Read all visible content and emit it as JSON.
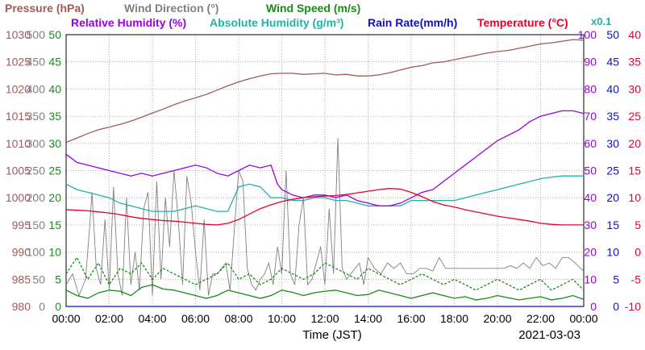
{
  "chart_data": {
    "type": "line",
    "date": "2021-03-03",
    "xlabel": "Time (JST)",
    "x_ticks": [
      "00:00",
      "02:00",
      "04:00",
      "06:00",
      "08:00",
      "10:00",
      "12:00",
      "14:00",
      "16:00",
      "18:00",
      "20:00",
      "22:00",
      "00:00"
    ],
    "x_range_hours": [
      0,
      24
    ],
    "grid": true,
    "scale_note": "x0.1",
    "legend": [
      {
        "key": "pressure",
        "label": "Pressure (hPa)",
        "color": "#a05a5a"
      },
      {
        "key": "wind_dir",
        "label": "Wind Direction (°)",
        "color": "#808080"
      },
      {
        "key": "wind_speed",
        "label": "Wind Speed (m/s)",
        "color": "#1a8a1a"
      },
      {
        "key": "rel_hum",
        "label": "Relative Humidity (%)",
        "color": "#9b00e6"
      },
      {
        "key": "abs_hum",
        "label": "Absolute Humidity (g/m³)",
        "color": "#20b2aa"
      },
      {
        "key": "rain",
        "label": "Rain Rate(mm/h)",
        "color": "#1010c8"
      },
      {
        "key": "temp",
        "label": "Temperature (°C)",
        "color": "#e8002a"
      }
    ],
    "axes": {
      "pressure": {
        "range": [
          980,
          1030
        ],
        "ticks": [
          "980",
          "985",
          "990",
          "995",
          "1000",
          "1005",
          "1010",
          "1015",
          "1020",
          "1025",
          "1030"
        ],
        "color": "#a05a5a"
      },
      "wind_dir": {
        "range": [
          0,
          500
        ],
        "ticks": [
          "0",
          "50",
          "100",
          "150",
          "200",
          "250",
          "300",
          "350",
          "400",
          "450",
          "500"
        ],
        "color": "#808080"
      },
      "wind_speed": {
        "range": [
          0,
          50
        ],
        "ticks": [
          "0",
          "5",
          "10",
          "15",
          "20",
          "25",
          "30",
          "35",
          "40",
          "45",
          "50"
        ],
        "color": "#1a8a1a"
      },
      "rel_hum": {
        "range": [
          0,
          100
        ],
        "ticks": [
          "0",
          "10",
          "20",
          "30",
          "40",
          "50",
          "60",
          "70",
          "80",
          "90",
          "100"
        ],
        "color": "#9b00e6"
      },
      "abs_hum_rain": {
        "range": [
          0,
          50
        ],
        "ticks": [
          "0",
          "5",
          "10",
          "15",
          "20",
          "25",
          "30",
          "35",
          "40",
          "45",
          "50"
        ],
        "color": "#1010c8"
      },
      "temp": {
        "range": [
          -10,
          40
        ],
        "ticks": [
          "-10",
          "-5",
          "0",
          "5",
          "10",
          "15",
          "20",
          "25",
          "30",
          "35",
          "40"
        ],
        "color": "#e8002a"
      }
    },
    "series": [
      {
        "key": "pressure",
        "axis": "pressure",
        "x": [
          0,
          0.5,
          1,
          1.5,
          2,
          2.5,
          3,
          3.5,
          4,
          4.5,
          5,
          5.5,
          6,
          6.5,
          7,
          7.5,
          8,
          8.5,
          9,
          9.5,
          10,
          10.5,
          11,
          11.5,
          12,
          12.5,
          13,
          13.5,
          14,
          14.5,
          15,
          15.5,
          16,
          16.5,
          17,
          17.5,
          18,
          18.5,
          19,
          19.5,
          20,
          20.5,
          21,
          21.5,
          22,
          22.5,
          23,
          23.5,
          24
        ],
        "y": [
          1010.2,
          1011,
          1011.8,
          1012.5,
          1013,
          1013.5,
          1014.1,
          1014.8,
          1015.6,
          1016.3,
          1017.1,
          1017.8,
          1018.4,
          1019,
          1019.8,
          1020.6,
          1021.3,
          1021.9,
          1022.4,
          1022.8,
          1022.9,
          1022.9,
          1022.7,
          1022.8,
          1022.9,
          1022.6,
          1022.7,
          1022.4,
          1022.4,
          1022.6,
          1023,
          1023.5,
          1024,
          1024.3,
          1024.8,
          1025,
          1025.4,
          1025.8,
          1026.2,
          1026.6,
          1026.9,
          1027.1,
          1027.5,
          1027.9,
          1028.3,
          1028.5,
          1028.8,
          1029.1,
          1029
        ]
      },
      {
        "key": "wind_dir",
        "axis": "wind_dir",
        "x": [
          0,
          0.3,
          0.6,
          0.9,
          1.1,
          1.2,
          1.4,
          1.6,
          1.8,
          2,
          2.2,
          2.4,
          2.6,
          2.8,
          3,
          3.2,
          3.4,
          3.6,
          3.8,
          4,
          4.2,
          4.4,
          4.6,
          4.8,
          5,
          5.2,
          5.4,
          5.6,
          5.8,
          6,
          6.2,
          6.4,
          6.6,
          6.8,
          7,
          7.2,
          7.4,
          7.6,
          7.8,
          8,
          8.2,
          8.4,
          8.6,
          8.8,
          9,
          9.2,
          9.4,
          9.6,
          9.8,
          10,
          10.2,
          10.4,
          10.6,
          10.8,
          11,
          11.2,
          11.4,
          11.6,
          11.8,
          12,
          12.2,
          12.4,
          12.6,
          12.8,
          13,
          13.2,
          13.4,
          13.6,
          13.8,
          14,
          14.3,
          14.6,
          14.9,
          15.2,
          15.5,
          15.8,
          16.1,
          16.4,
          16.7,
          17,
          17.3,
          17.6,
          17.9,
          18.2,
          18.5,
          18.8,
          19.1,
          19.4,
          19.7,
          20,
          20.3,
          20.6,
          20.9,
          21.2,
          21.5,
          21.8,
          22.1,
          22.4,
          22.7,
          23,
          23.3,
          23.6,
          24
        ],
        "y": [
          40,
          60,
          20,
          50,
          150,
          210,
          70,
          40,
          160,
          30,
          220,
          60,
          20,
          200,
          40,
          100,
          30,
          180,
          210,
          20,
          230,
          50,
          200,
          110,
          250,
          160,
          40,
          240,
          190,
          100,
          30,
          160,
          20,
          60,
          60,
          70,
          80,
          30,
          140,
          250,
          230,
          70,
          40,
          30,
          50,
          60,
          80,
          40,
          110,
          60,
          250,
          60,
          40,
          150,
          200,
          40,
          50,
          80,
          110,
          40,
          180,
          60,
          310,
          70,
          50,
          60,
          70,
          80,
          40,
          90,
          70,
          60,
          80,
          70,
          80,
          60,
          60,
          70,
          70,
          65,
          90,
          70,
          70,
          70,
          70,
          70,
          70,
          70,
          70,
          70,
          70,
          75,
          70,
          80,
          70,
          90,
          75,
          80,
          70,
          90,
          90,
          80,
          65
        ]
      },
      {
        "key": "wind_speed",
        "axis": "wind_speed",
        "x": [
          0,
          0.5,
          1,
          1.5,
          2,
          2.5,
          3,
          3.5,
          4,
          4.5,
          5,
          5.5,
          6,
          6.5,
          7,
          7.5,
          8,
          8.5,
          9,
          9.5,
          10,
          10.5,
          11,
          11.5,
          12,
          12.5,
          13,
          13.5,
          14,
          14.5,
          15,
          15.5,
          16,
          16.5,
          17,
          17.5,
          18,
          18.5,
          19,
          19.5,
          20,
          20.5,
          21,
          21.5,
          22,
          22.5,
          23,
          23.5,
          24
        ],
        "y": [
          3,
          2,
          1.5,
          2.5,
          3,
          2.8,
          2,
          3.5,
          4,
          3.2,
          3,
          2.5,
          2,
          1.5,
          2,
          3,
          2.5,
          2,
          1.5,
          2,
          3,
          2.6,
          2,
          2.5,
          2.8,
          3,
          2.5,
          2,
          2.2,
          3,
          2.5,
          2,
          1.5,
          2,
          2.5,
          2,
          1.5,
          1.8,
          1.2,
          1.5,
          2,
          1.6,
          1.2,
          1.5,
          1.8,
          1.2,
          1.5,
          2,
          1.3
        ]
      },
      {
        "key": "wind_gust",
        "axis": "wind_speed",
        "dashed": true,
        "x": [
          0,
          0.5,
          1,
          1.5,
          2,
          2.5,
          3,
          3.5,
          4,
          4.5,
          5,
          5.5,
          6,
          6.5,
          7,
          7.5,
          8,
          8.5,
          9,
          9.5,
          10,
          10.5,
          11,
          11.5,
          12,
          12.5,
          13,
          13.5,
          14,
          14.5,
          15,
          15.5,
          16,
          16.5,
          17,
          17.5,
          18,
          18.5,
          19,
          19.5,
          20,
          20.5,
          21,
          21.5,
          22,
          22.5,
          23,
          23.5,
          24
        ],
        "y": [
          6,
          9,
          5,
          8,
          4,
          7,
          6,
          8,
          5,
          7,
          6,
          5,
          4,
          5,
          6,
          8,
          5,
          6,
          4,
          5,
          7,
          6,
          5,
          6,
          8,
          7,
          6,
          5,
          7,
          6,
          5,
          4,
          5,
          6,
          5,
          4,
          5,
          4,
          3,
          4,
          5,
          4,
          3,
          4,
          5,
          3,
          4,
          5,
          3
        ]
      },
      {
        "key": "rel_hum",
        "axis": "rel_hum",
        "x": [
          0,
          0.5,
          1,
          1.5,
          2,
          2.5,
          3,
          3.5,
          4,
          4.5,
          5,
          5.5,
          6,
          6.5,
          7,
          7.5,
          8,
          8.5,
          9,
          9.5,
          9.8,
          10,
          10.5,
          11,
          11.5,
          12,
          12.5,
          13,
          13.5,
          14,
          14.5,
          15,
          15.5,
          16,
          16.5,
          17,
          17.5,
          18,
          18.5,
          19,
          19.5,
          20,
          20.5,
          21,
          21.5,
          22,
          22.5,
          23,
          23.5,
          24
        ],
        "y": [
          56,
          53,
          52,
          51,
          50,
          49,
          48,
          49,
          48,
          49,
          50,
          51,
          52,
          51,
          49,
          48,
          50,
          52,
          51,
          52,
          45,
          43,
          41,
          40,
          41,
          41,
          40,
          41,
          39,
          38,
          37,
          37,
          38,
          40,
          42,
          43,
          46,
          49,
          52,
          55,
          58,
          61,
          63,
          65,
          68,
          70,
          71,
          72,
          72,
          71
        ]
      },
      {
        "key": "abs_hum",
        "axis": "abs_hum_rain",
        "x": [
          0,
          0.5,
          1,
          1.5,
          2,
          2.5,
          3,
          3.5,
          4,
          4.5,
          5,
          5.5,
          6,
          6.5,
          7,
          7.5,
          8,
          8.5,
          9,
          9.5,
          10,
          10.5,
          11,
          11.5,
          12,
          12.5,
          13,
          13.5,
          14,
          14.5,
          15,
          15.5,
          16,
          16.5,
          17,
          17.5,
          18,
          18.5,
          19,
          19.5,
          20,
          20.5,
          21,
          21.5,
          22,
          22.5,
          23,
          23.5,
          24
        ],
        "y": [
          22.5,
          21.5,
          21,
          20.5,
          20,
          19,
          18.5,
          18,
          17.5,
          17.5,
          17.5,
          18,
          18.5,
          18,
          17.5,
          17.5,
          22,
          22.5,
          22,
          20,
          20,
          19.5,
          19.5,
          20,
          20,
          19.5,
          19.5,
          19,
          18.5,
          18.5,
          18.5,
          18.5,
          19.5,
          19.5,
          19.5,
          19.5,
          19.5,
          20,
          20.5,
          21,
          21.5,
          22,
          22.5,
          23,
          23.5,
          23.8,
          24,
          24,
          24
        ]
      },
      {
        "key": "rain",
        "axis": "abs_hum_rain",
        "x": [
          0,
          24
        ],
        "y": [
          0,
          0
        ]
      },
      {
        "key": "temp",
        "axis": "temp",
        "x": [
          0,
          0.5,
          1,
          1.5,
          2,
          2.5,
          3,
          3.5,
          4,
          4.5,
          5,
          5.5,
          6,
          6.5,
          7,
          7.5,
          8,
          8.5,
          9,
          9.5,
          10,
          10.5,
          11,
          11.5,
          12,
          12.5,
          13,
          13.5,
          14,
          14.5,
          15,
          15.5,
          16,
          16.5,
          17,
          17.5,
          18,
          18.5,
          19,
          19.5,
          20,
          20.5,
          21,
          21.5,
          22,
          22.5,
          23,
          23.5,
          24
        ],
        "y": [
          7.8,
          7.7,
          7.6,
          7.4,
          7.2,
          6.9,
          6.5,
          6.2,
          6,
          5.8,
          5.7,
          5.5,
          5.3,
          5.1,
          5,
          5.3,
          6,
          7,
          8,
          8.7,
          9.3,
          9.7,
          10,
          10.2,
          10.3,
          10.4,
          10.6,
          10.9,
          11.2,
          11.5,
          11.7,
          11.6,
          11,
          10.2,
          9.3,
          8.7,
          8.3,
          7.8,
          7.4,
          7,
          6.6,
          6.3,
          6,
          5.7,
          5.3,
          5.1,
          5,
          5,
          5
        ]
      }
    ]
  }
}
